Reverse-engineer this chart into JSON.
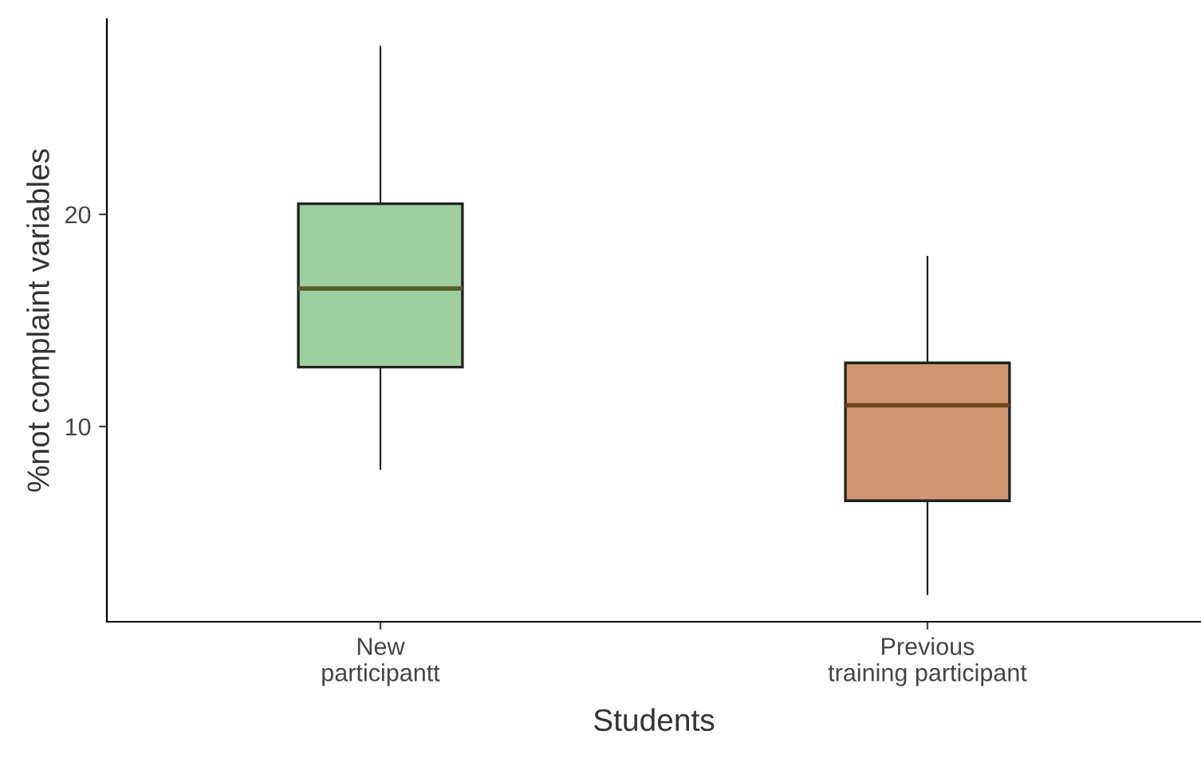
{
  "chart_data": {
    "type": "box",
    "xlabel": "Students",
    "ylabel": "%not complaint variables",
    "categories": [
      "New\nparticipantt",
      "Previous\ntraining participant"
    ],
    "boxes": [
      {
        "low": 8.0,
        "q1": 12.8,
        "median": 16.5,
        "q3": 20.5,
        "high": 27.9
      },
      {
        "low": 2.1,
        "q1": 6.5,
        "median": 11.0,
        "q3": 13.0,
        "high": 18.0
      }
    ],
    "colors": [
      "#9ecfa0",
      "#cf9670"
    ],
    "ylim": [
      0.8,
      29.2
    ],
    "yticks": [
      10,
      20
    ],
    "grid": false,
    "legend": false
  }
}
